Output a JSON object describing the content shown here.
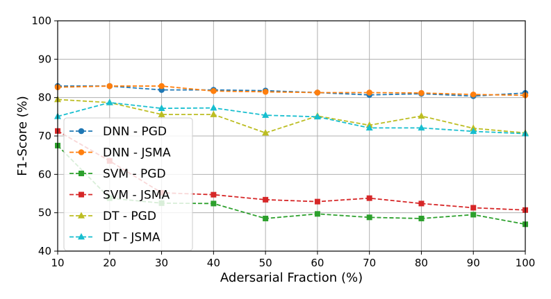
{
  "chart_data": {
    "type": "line",
    "title": "",
    "xlabel": "Adersarial Fraction (%)",
    "ylabel": "F1-Score (%)",
    "xlim": [
      10,
      100
    ],
    "ylim": [
      40,
      100
    ],
    "x": [
      10,
      20,
      30,
      40,
      50,
      60,
      70,
      80,
      90,
      100
    ],
    "xticks": [
      "10",
      "20",
      "30",
      "40",
      "50",
      "60",
      "70",
      "80",
      "90",
      "100"
    ],
    "yticks": [
      "40",
      "50",
      "60",
      "70",
      "80",
      "90",
      "100"
    ],
    "grid": true,
    "legend_position": "lower-left",
    "series": [
      {
        "name": "DNN - PGD",
        "color": "#1f77b4",
        "marker": "circle",
        "values": [
          83.0,
          83.0,
          82.0,
          82.0,
          81.8,
          81.3,
          80.7,
          81.0,
          80.4,
          81.2
        ]
      },
      {
        "name": "DNN - JSMA",
        "color": "#ff7f0e",
        "marker": "circle",
        "values": [
          82.7,
          83.0,
          83.0,
          81.7,
          81.5,
          81.3,
          81.3,
          81.2,
          80.8,
          80.6
        ]
      },
      {
        "name": "SVM - PGD",
        "color": "#2ca02c",
        "marker": "square",
        "values": [
          67.5,
          53.8,
          52.5,
          52.4,
          48.5,
          49.7,
          48.8,
          48.5,
          49.5,
          47.0
        ]
      },
      {
        "name": "SVM - JSMA",
        "color": "#d62728",
        "marker": "square",
        "values": [
          71.3,
          63.5,
          55.2,
          54.7,
          53.4,
          52.9,
          53.8,
          52.4,
          51.3,
          50.7
        ]
      },
      {
        "name": "DT - PGD",
        "color": "#bcbd22",
        "marker": "triangle",
        "values": [
          79.5,
          78.7,
          75.6,
          75.6,
          70.8,
          75.2,
          72.8,
          75.2,
          72.0,
          70.8
        ]
      },
      {
        "name": "DT - JSMA",
        "color": "#17becf",
        "marker": "triangle",
        "values": [
          75.1,
          78.7,
          77.2,
          77.3,
          75.4,
          75.0,
          72.1,
          72.1,
          71.2,
          70.6
        ]
      }
    ]
  }
}
